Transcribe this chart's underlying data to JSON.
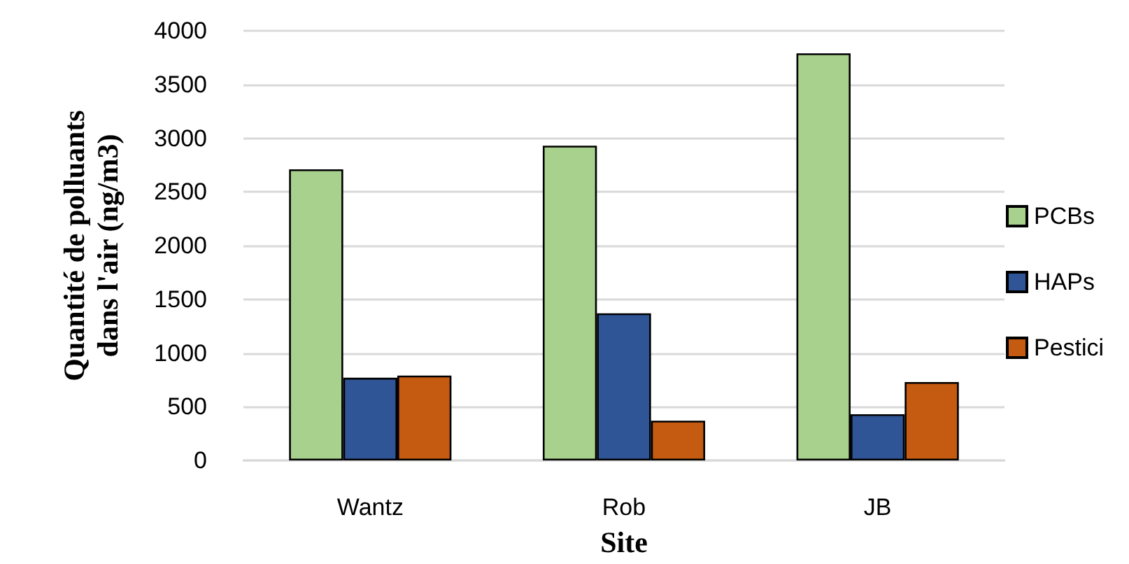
{
  "chart_data": {
    "type": "bar",
    "xlabel": "Site",
    "ylabel": "Quantité de polluants\ndans l'air (ng/m3)",
    "categories": [
      "Wantz",
      "Rob",
      "JB"
    ],
    "series": [
      {
        "name": "PCBs",
        "color": "#a9d18e",
        "values": [
          2710,
          2930,
          3790
        ]
      },
      {
        "name": "HAPs",
        "color": "#2f5597",
        "values": [
          770,
          1370,
          430
        ]
      },
      {
        "name": "Pestici",
        "color": "#c55a11",
        "values": [
          790,
          370,
          730
        ]
      }
    ],
    "ylim": [
      0,
      4000
    ],
    "yticks": [
      0,
      500,
      1000,
      1500,
      2000,
      2500,
      3000,
      3500,
      4000
    ],
    "grid": "y",
    "legend": "right"
  }
}
